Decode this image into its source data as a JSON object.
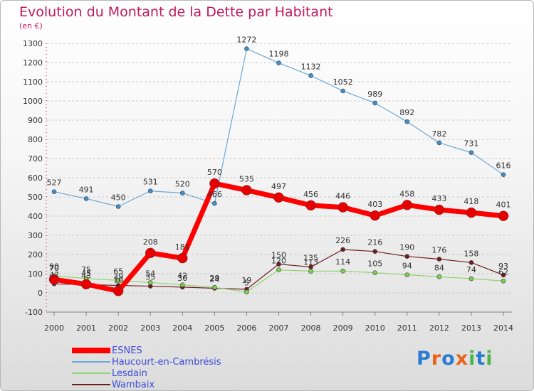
{
  "header": {
    "title": "Evolution du Montant de la Dette par Habitant",
    "subtitle": "(en €)"
  },
  "logo": {
    "text": "Proxiti",
    "colors": [
      "#2b7bd1",
      "#e8641b",
      "#2b7bd1",
      "#e8641b",
      "#4bb54a",
      "#2b7bd1",
      "#4bb54a"
    ]
  },
  "colors": {
    "title": "#c2185b",
    "legend_text": "#3b4bd8",
    "axis": "#808080",
    "grid": "#c9c9c9"
  },
  "chart_data": {
    "type": "line",
    "title": "Evolution du Montant de la Dette par Habitant",
    "subtitle": "(en €)",
    "x": [
      2000,
      2001,
      2002,
      2003,
      2004,
      2005,
      2006,
      2007,
      2008,
      2009,
      2010,
      2011,
      2012,
      2013,
      2014
    ],
    "ylim": [
      -100,
      1300
    ],
    "yticks": [
      -100,
      0,
      100,
      200,
      300,
      400,
      500,
      600,
      700,
      800,
      900,
      1000,
      1100,
      1200,
      1300
    ],
    "grid": "horizontal dashed",
    "legend_position": "bottom-left",
    "series": [
      {
        "name": "Wambaix",
        "color": "#6e1d1d",
        "point_color": "#6e1d1d",
        "width": 1.2,
        "marker": 3,
        "values": [
          47,
          43,
          39,
          35,
          30,
          24,
          19,
          150,
          135,
          226,
          216,
          190,
          176,
          158,
          93
        ],
        "labels": [
          "47",
          "43",
          "39",
          "35",
          "30",
          "24",
          "19",
          "150",
          "135",
          "226",
          "216",
          "190",
          "176",
          "158",
          "93"
        ]
      },
      {
        "name": "Lesdain",
        "color": "#8fd470",
        "point_color": "#79d14a",
        "width": 1.2,
        "marker": 3,
        "values": [
          90,
          75,
          65,
          54,
          42,
          29,
          5,
          120,
          113,
          114,
          105,
          94,
          84,
          74,
          62
        ],
        "labels": [
          "90",
          "75",
          "65",
          "54",
          "42",
          "29",
          "5",
          "120",
          "113",
          "114",
          "105",
          "94",
          "84",
          "74",
          "62"
        ]
      },
      {
        "name": "Haucourt-en-Cambrésis",
        "color": "#6aa9d8",
        "point_color": "#3d8fd0",
        "width": 1.2,
        "marker": 3,
        "values": [
          527,
          491,
          450,
          531,
          520,
          466,
          1272,
          1198,
          1132,
          1052,
          989,
          892,
          782,
          731,
          616
        ],
        "labels": [
          "527",
          "491",
          "450",
          "531",
          "520",
          "466",
          "1272",
          "1198",
          "1132",
          "1052",
          "989",
          "892",
          "782",
          "731",
          "616"
        ]
      },
      {
        "name": "ESNES",
        "color": "#ff0000",
        "point_color": "#e60000",
        "width": 7,
        "marker": 7,
        "values": [
          70,
          45,
          10,
          208,
          181,
          570,
          535,
          497,
          456,
          446,
          403,
          458,
          433,
          418,
          401
        ],
        "labels": [
          "70",
          "45",
          "10",
          "208",
          "181",
          "570",
          "535",
          "497",
          "456",
          "446",
          "403",
          "458",
          "433",
          "418",
          "401"
        ]
      }
    ],
    "legend": [
      {
        "name": "ESNES",
        "color": "#ff0000",
        "thickness": 8
      },
      {
        "name": "Haucourt-en-Cambrésis",
        "color": "#6aa9d8",
        "thickness": 2
      },
      {
        "name": "Lesdain",
        "color": "#8fd470",
        "thickness": 2
      },
      {
        "name": "Wambaix",
        "color": "#6e1d1d",
        "thickness": 2
      }
    ]
  }
}
